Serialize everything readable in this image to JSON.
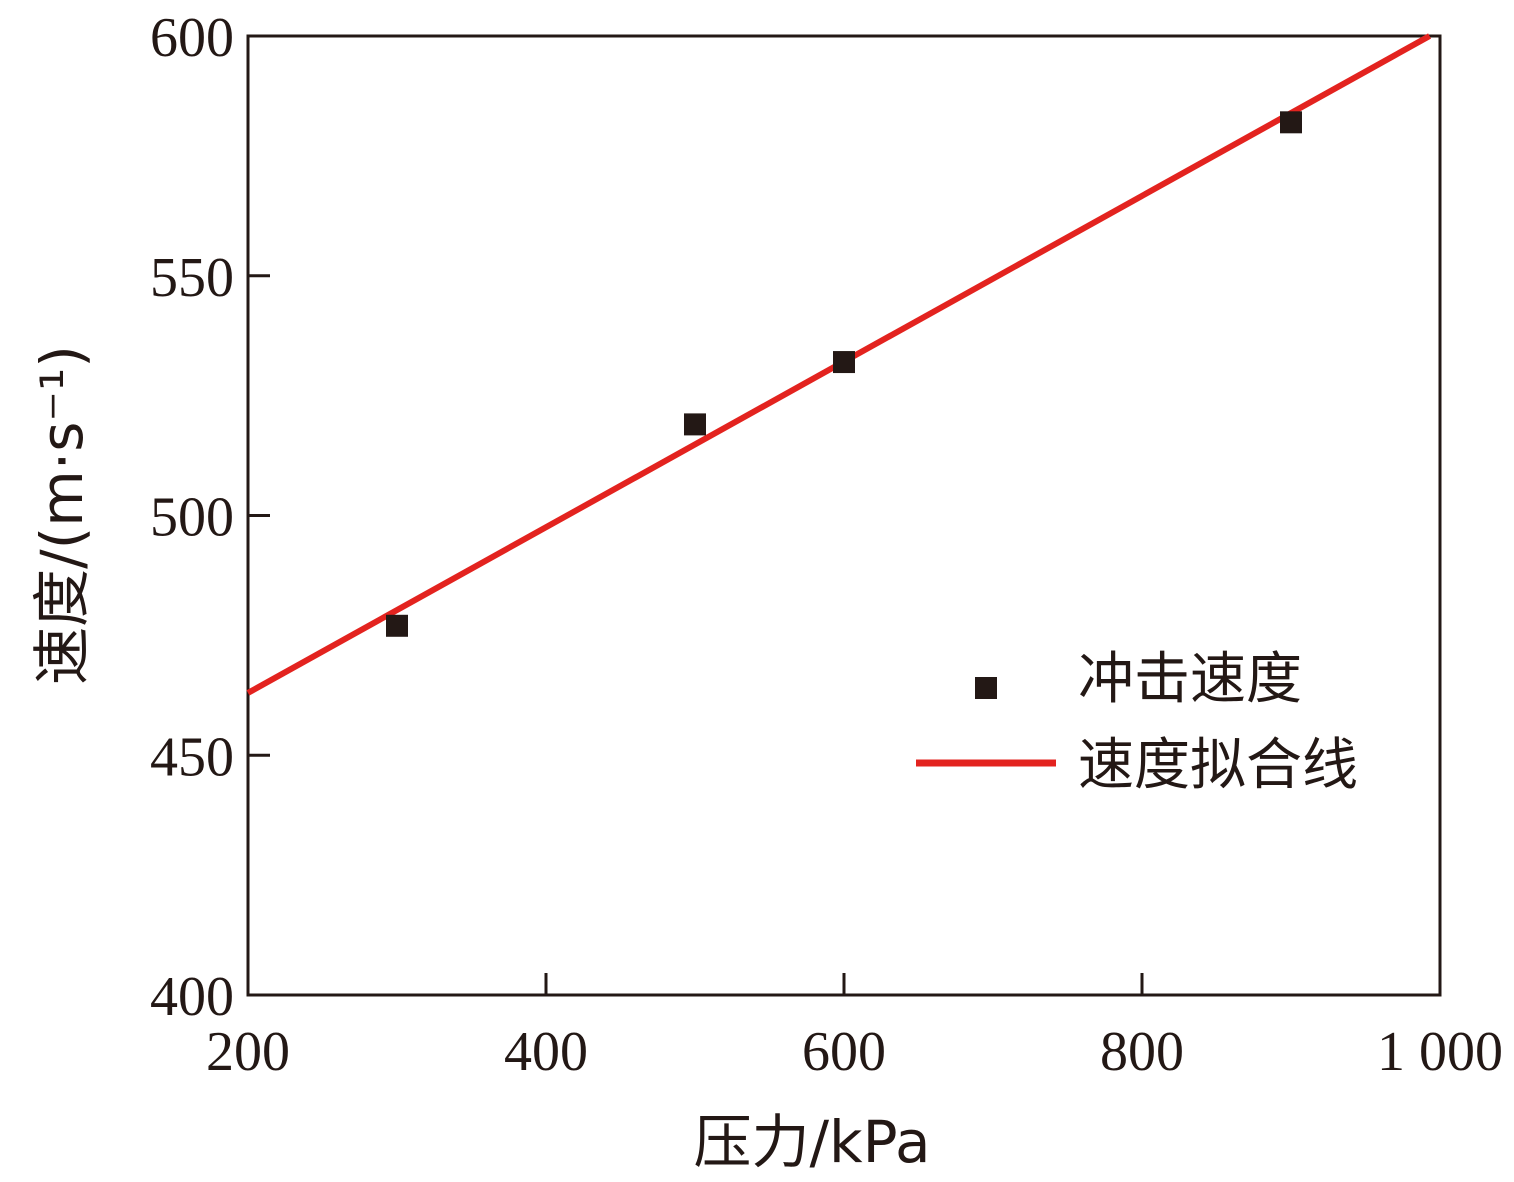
{
  "chart_data": {
    "type": "scatter",
    "xlabel": "压力/kPa",
    "ylabel": "速度/(m·s⁻¹)",
    "xlim": [
      200,
      1000
    ],
    "ylim": [
      400,
      600
    ],
    "x_ticks": [
      200,
      400,
      600,
      800,
      1000
    ],
    "x_tick_labels": [
      "200",
      "400",
      "600",
      "800",
      "1 000"
    ],
    "y_ticks": [
      400,
      450,
      500,
      550,
      600
    ],
    "y_tick_labels": [
      "400",
      "450",
      "500",
      "550",
      "600"
    ],
    "grid": false,
    "legend_position": "lower-right",
    "series": [
      {
        "name": "冲击速度",
        "kind": "scatter",
        "color": "#231815",
        "marker": "square",
        "x": [
          300,
          500,
          600,
          900
        ],
        "y": [
          477,
          519,
          532,
          582
        ]
      },
      {
        "name": "速度拟合线",
        "kind": "line",
        "color": "#e3231f",
        "x": [
          200,
          993
        ],
        "y": [
          463,
          600
        ]
      }
    ]
  }
}
